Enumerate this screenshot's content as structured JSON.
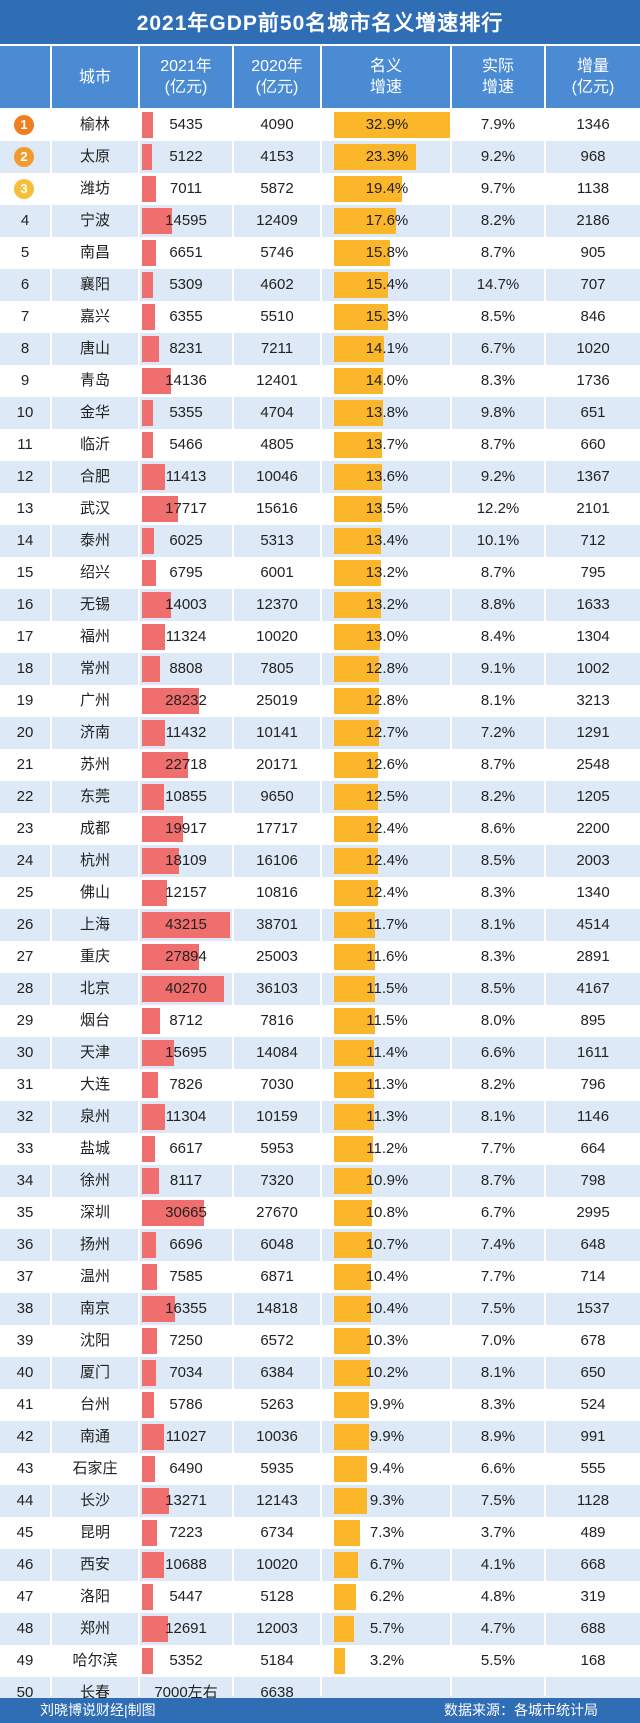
{
  "title": "2021年GDP前50名城市名义增速排行",
  "columns": [
    "城市",
    "2021年\n(亿元)",
    "2020年\n(亿元)",
    "名义\n增速",
    "实际\n增速",
    "增量\n(亿元)"
  ],
  "footer": {
    "author": "刘晓博说财经|制图",
    "source": "数据来源：各城市统计局"
  },
  "colors": {
    "title_bg": "#2f6db5",
    "header_bg": "#4b8bd4",
    "stripe": "#dde9f6",
    "gdp_bar": "#f06e6e",
    "growth_bar": "#fbb62a",
    "medal_1": "#ef7d22",
    "medal_2": "#f29a2e",
    "medal_3": "#f5bf3a"
  },
  "chart_data": {
    "type": "table",
    "gdp_bar_max": 43215,
    "growth_bar_max": 32.9,
    "rows": [
      {
        "rank": "1",
        "city": "榆林",
        "gdp2021": 5435,
        "gdp2021_text": "5435",
        "gdp2020": "4090",
        "nominal": 32.9,
        "nominal_text": "32.9%",
        "real": "7.9%",
        "increase": "1346"
      },
      {
        "rank": "2",
        "city": "太原",
        "gdp2021": 5122,
        "gdp2021_text": "5122",
        "gdp2020": "4153",
        "nominal": 23.3,
        "nominal_text": "23.3%",
        "real": "9.2%",
        "increase": "968"
      },
      {
        "rank": "3",
        "city": "潍坊",
        "gdp2021": 7011,
        "gdp2021_text": "7011",
        "gdp2020": "5872",
        "nominal": 19.4,
        "nominal_text": "19.4%",
        "real": "9.7%",
        "increase": "1138"
      },
      {
        "rank": "4",
        "city": "宁波",
        "gdp2021": 14595,
        "gdp2021_text": "14595",
        "gdp2020": "12409",
        "nominal": 17.6,
        "nominal_text": "17.6%",
        "real": "8.2%",
        "increase": "2186"
      },
      {
        "rank": "5",
        "city": "南昌",
        "gdp2021": 6651,
        "gdp2021_text": "6651",
        "gdp2020": "5746",
        "nominal": 15.8,
        "nominal_text": "15.8%",
        "real": "8.7%",
        "increase": "905"
      },
      {
        "rank": "6",
        "city": "襄阳",
        "gdp2021": 5309,
        "gdp2021_text": "5309",
        "gdp2020": "4602",
        "nominal": 15.4,
        "nominal_text": "15.4%",
        "real": "14.7%",
        "increase": "707"
      },
      {
        "rank": "7",
        "city": "嘉兴",
        "gdp2021": 6355,
        "gdp2021_text": "6355",
        "gdp2020": "5510",
        "nominal": 15.3,
        "nominal_text": "15.3%",
        "real": "8.5%",
        "increase": "846"
      },
      {
        "rank": "8",
        "city": "唐山",
        "gdp2021": 8231,
        "gdp2021_text": "8231",
        "gdp2020": "7211",
        "nominal": 14.1,
        "nominal_text": "14.1%",
        "real": "6.7%",
        "increase": "1020"
      },
      {
        "rank": "9",
        "city": "青岛",
        "gdp2021": 14136,
        "gdp2021_text": "14136",
        "gdp2020": "12401",
        "nominal": 14.0,
        "nominal_text": "14.0%",
        "real": "8.3%",
        "increase": "1736"
      },
      {
        "rank": "10",
        "city": "金华",
        "gdp2021": 5355,
        "gdp2021_text": "5355",
        "gdp2020": "4704",
        "nominal": 13.8,
        "nominal_text": "13.8%",
        "real": "9.8%",
        "increase": "651"
      },
      {
        "rank": "11",
        "city": "临沂",
        "gdp2021": 5466,
        "gdp2021_text": "5466",
        "gdp2020": "4805",
        "nominal": 13.7,
        "nominal_text": "13.7%",
        "real": "8.7%",
        "increase": "660"
      },
      {
        "rank": "12",
        "city": "合肥",
        "gdp2021": 11413,
        "gdp2021_text": "11413",
        "gdp2020": "10046",
        "nominal": 13.6,
        "nominal_text": "13.6%",
        "real": "9.2%",
        "increase": "1367"
      },
      {
        "rank": "13",
        "city": "武汉",
        "gdp2021": 17717,
        "gdp2021_text": "17717",
        "gdp2020": "15616",
        "nominal": 13.5,
        "nominal_text": "13.5%",
        "real": "12.2%",
        "increase": "2101"
      },
      {
        "rank": "14",
        "city": "泰州",
        "gdp2021": 6025,
        "gdp2021_text": "6025",
        "gdp2020": "5313",
        "nominal": 13.4,
        "nominal_text": "13.4%",
        "real": "10.1%",
        "increase": "712"
      },
      {
        "rank": "15",
        "city": "绍兴",
        "gdp2021": 6795,
        "gdp2021_text": "6795",
        "gdp2020": "6001",
        "nominal": 13.2,
        "nominal_text": "13.2%",
        "real": "8.7%",
        "increase": "795"
      },
      {
        "rank": "16",
        "city": "无锡",
        "gdp2021": 14003,
        "gdp2021_text": "14003",
        "gdp2020": "12370",
        "nominal": 13.2,
        "nominal_text": "13.2%",
        "real": "8.8%",
        "increase": "1633"
      },
      {
        "rank": "17",
        "city": "福州",
        "gdp2021": 11324,
        "gdp2021_text": "11324",
        "gdp2020": "10020",
        "nominal": 13.0,
        "nominal_text": "13.0%",
        "real": "8.4%",
        "increase": "1304"
      },
      {
        "rank": "18",
        "city": "常州",
        "gdp2021": 8808,
        "gdp2021_text": "8808",
        "gdp2020": "7805",
        "nominal": 12.8,
        "nominal_text": "12.8%",
        "real": "9.1%",
        "increase": "1002"
      },
      {
        "rank": "19",
        "city": "广州",
        "gdp2021": 28232,
        "gdp2021_text": "28232",
        "gdp2020": "25019",
        "nominal": 12.8,
        "nominal_text": "12.8%",
        "real": "8.1%",
        "increase": "3213"
      },
      {
        "rank": "20",
        "city": "济南",
        "gdp2021": 11432,
        "gdp2021_text": "11432",
        "gdp2020": "10141",
        "nominal": 12.7,
        "nominal_text": "12.7%",
        "real": "7.2%",
        "increase": "1291"
      },
      {
        "rank": "21",
        "city": "苏州",
        "gdp2021": 22718,
        "gdp2021_text": "22718",
        "gdp2020": "20171",
        "nominal": 12.6,
        "nominal_text": "12.6%",
        "real": "8.7%",
        "increase": "2548"
      },
      {
        "rank": "22",
        "city": "东莞",
        "gdp2021": 10855,
        "gdp2021_text": "10855",
        "gdp2020": "9650",
        "nominal": 12.5,
        "nominal_text": "12.5%",
        "real": "8.2%",
        "increase": "1205"
      },
      {
        "rank": "23",
        "city": "成都",
        "gdp2021": 19917,
        "gdp2021_text": "19917",
        "gdp2020": "17717",
        "nominal": 12.4,
        "nominal_text": "12.4%",
        "real": "8.6%",
        "increase": "2200"
      },
      {
        "rank": "24",
        "city": "杭州",
        "gdp2021": 18109,
        "gdp2021_text": "18109",
        "gdp2020": "16106",
        "nominal": 12.4,
        "nominal_text": "12.4%",
        "real": "8.5%",
        "increase": "2003"
      },
      {
        "rank": "25",
        "city": "佛山",
        "gdp2021": 12157,
        "gdp2021_text": "12157",
        "gdp2020": "10816",
        "nominal": 12.4,
        "nominal_text": "12.4%",
        "real": "8.3%",
        "increase": "1340"
      },
      {
        "rank": "26",
        "city": "上海",
        "gdp2021": 43215,
        "gdp2021_text": "43215",
        "gdp2020": "38701",
        "nominal": 11.7,
        "nominal_text": "11.7%",
        "real": "8.1%",
        "increase": "4514"
      },
      {
        "rank": "27",
        "city": "重庆",
        "gdp2021": 27894,
        "gdp2021_text": "27894",
        "gdp2020": "25003",
        "nominal": 11.6,
        "nominal_text": "11.6%",
        "real": "8.3%",
        "increase": "2891"
      },
      {
        "rank": "28",
        "city": "北京",
        "gdp2021": 40270,
        "gdp2021_text": "40270",
        "gdp2020": "36103",
        "nominal": 11.5,
        "nominal_text": "11.5%",
        "real": "8.5%",
        "increase": "4167"
      },
      {
        "rank": "29",
        "city": "烟台",
        "gdp2021": 8712,
        "gdp2021_text": "8712",
        "gdp2020": "7816",
        "nominal": 11.5,
        "nominal_text": "11.5%",
        "real": "8.0%",
        "increase": "895"
      },
      {
        "rank": "30",
        "city": "天津",
        "gdp2021": 15695,
        "gdp2021_text": "15695",
        "gdp2020": "14084",
        "nominal": 11.4,
        "nominal_text": "11.4%",
        "real": "6.6%",
        "increase": "1611"
      },
      {
        "rank": "31",
        "city": "大连",
        "gdp2021": 7826,
        "gdp2021_text": "7826",
        "gdp2020": "7030",
        "nominal": 11.3,
        "nominal_text": "11.3%",
        "real": "8.2%",
        "increase": "796"
      },
      {
        "rank": "32",
        "city": "泉州",
        "gdp2021": 11304,
        "gdp2021_text": "11304",
        "gdp2020": "10159",
        "nominal": 11.3,
        "nominal_text": "11.3%",
        "real": "8.1%",
        "increase": "1146"
      },
      {
        "rank": "33",
        "city": "盐城",
        "gdp2021": 6617,
        "gdp2021_text": "6617",
        "gdp2020": "5953",
        "nominal": 11.2,
        "nominal_text": "11.2%",
        "real": "7.7%",
        "increase": "664"
      },
      {
        "rank": "34",
        "city": "徐州",
        "gdp2021": 8117,
        "gdp2021_text": "8117",
        "gdp2020": "7320",
        "nominal": 10.9,
        "nominal_text": "10.9%",
        "real": "8.7%",
        "increase": "798"
      },
      {
        "rank": "35",
        "city": "深圳",
        "gdp2021": 30665,
        "gdp2021_text": "30665",
        "gdp2020": "27670",
        "nominal": 10.8,
        "nominal_text": "10.8%",
        "real": "6.7%",
        "increase": "2995"
      },
      {
        "rank": "36",
        "city": "扬州",
        "gdp2021": 6696,
        "gdp2021_text": "6696",
        "gdp2020": "6048",
        "nominal": 10.7,
        "nominal_text": "10.7%",
        "real": "7.4%",
        "increase": "648"
      },
      {
        "rank": "37",
        "city": "温州",
        "gdp2021": 7585,
        "gdp2021_text": "7585",
        "gdp2020": "6871",
        "nominal": 10.4,
        "nominal_text": "10.4%",
        "real": "7.7%",
        "increase": "714"
      },
      {
        "rank": "38",
        "city": "南京",
        "gdp2021": 16355,
        "gdp2021_text": "16355",
        "gdp2020": "14818",
        "nominal": 10.4,
        "nominal_text": "10.4%",
        "real": "7.5%",
        "increase": "1537"
      },
      {
        "rank": "39",
        "city": "沈阳",
        "gdp2021": 7250,
        "gdp2021_text": "7250",
        "gdp2020": "6572",
        "nominal": 10.3,
        "nominal_text": "10.3%",
        "real": "7.0%",
        "increase": "678"
      },
      {
        "rank": "40",
        "city": "厦门",
        "gdp2021": 7034,
        "gdp2021_text": "7034",
        "gdp2020": "6384",
        "nominal": 10.2,
        "nominal_text": "10.2%",
        "real": "8.1%",
        "increase": "650"
      },
      {
        "rank": "41",
        "city": "台州",
        "gdp2021": 5786,
        "gdp2021_text": "5786",
        "gdp2020": "5263",
        "nominal": 9.9,
        "nominal_text": "9.9%",
        "real": "8.3%",
        "increase": "524"
      },
      {
        "rank": "42",
        "city": "南通",
        "gdp2021": 11027,
        "gdp2021_text": "11027",
        "gdp2020": "10036",
        "nominal": 9.9,
        "nominal_text": "9.9%",
        "real": "8.9%",
        "increase": "991"
      },
      {
        "rank": "43",
        "city": "石家庄",
        "gdp2021": 6490,
        "gdp2021_text": "6490",
        "gdp2020": "5935",
        "nominal": 9.4,
        "nominal_text": "9.4%",
        "real": "6.6%",
        "increase": "555"
      },
      {
        "rank": "44",
        "city": "长沙",
        "gdp2021": 13271,
        "gdp2021_text": "13271",
        "gdp2020": "12143",
        "nominal": 9.3,
        "nominal_text": "9.3%",
        "real": "7.5%",
        "increase": "1128"
      },
      {
        "rank": "45",
        "city": "昆明",
        "gdp2021": 7223,
        "gdp2021_text": "7223",
        "gdp2020": "6734",
        "nominal": 7.3,
        "nominal_text": "7.3%",
        "real": "3.7%",
        "increase": "489"
      },
      {
        "rank": "46",
        "city": "西安",
        "gdp2021": 10688,
        "gdp2021_text": "10688",
        "gdp2020": "10020",
        "nominal": 6.7,
        "nominal_text": "6.7%",
        "real": "4.1%",
        "increase": "668"
      },
      {
        "rank": "47",
        "city": "洛阳",
        "gdp2021": 5447,
        "gdp2021_text": "5447",
        "gdp2020": "5128",
        "nominal": 6.2,
        "nominal_text": "6.2%",
        "real": "4.8%",
        "increase": "319"
      },
      {
        "rank": "48",
        "city": "郑州",
        "gdp2021": 12691,
        "gdp2021_text": "12691",
        "gdp2020": "12003",
        "nominal": 5.7,
        "nominal_text": "5.7%",
        "real": "4.7%",
        "increase": "688"
      },
      {
        "rank": "49",
        "city": "哈尔滨",
        "gdp2021": 5352,
        "gdp2021_text": "5352",
        "gdp2020": "5184",
        "nominal": 3.2,
        "nominal_text": "3.2%",
        "real": "5.5%",
        "increase": "168"
      },
      {
        "rank": "50",
        "city": "长春",
        "gdp2021": null,
        "gdp2021_text": "7000左右",
        "gdp2020": "6638",
        "nominal": null,
        "nominal_text": "",
        "real": "",
        "increase": ""
      }
    ]
  }
}
